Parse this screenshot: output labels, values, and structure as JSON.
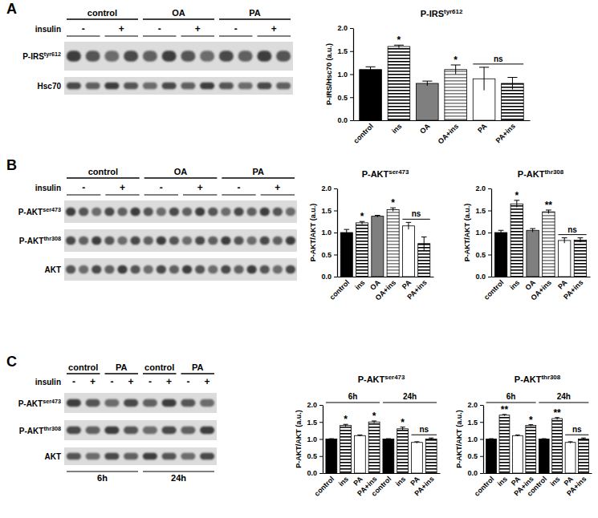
{
  "chart_data": [
    {
      "type": "bar",
      "title": "P-IRStyr612",
      "y_label": "P-IRS/Hsc70 (a.u.)",
      "categories": [
        "control",
        "ins",
        "OA",
        "OA+ins",
        "PA",
        "PA+ins"
      ],
      "values": [
        1.1,
        1.6,
        0.8,
        1.1,
        0.9,
        0.8
      ],
      "errors": [
        0.06,
        0.03,
        0.05,
        0.1,
        0.25,
        0.13
      ],
      "colors": [
        "#000000",
        "#000000",
        "#7f7f7f",
        "#7f7f7f",
        "#ffffff",
        "#000000"
      ],
      "ylim": [
        0,
        2
      ],
      "yticks": [
        {
          "value": 0,
          "label": "0.0"
        },
        0.5,
        {
          "value": 1,
          "label": "1.0"
        },
        1.5,
        {
          "value": 2,
          "label": "2.0"
        }
      ],
      "annotations": [
        {
          "text": "*",
          "index": 1
        },
        {
          "text": "*",
          "index": 3
        },
        {
          "text": "ns",
          "index": [
            4,
            5
          ]
        }
      ]
    },
    {
      "type": "bar",
      "title": "P-AKTser473",
      "y_label": "P-AKT/AKT (a.u.)",
      "categories": [
        "control",
        "ins",
        "OA",
        "OA+ins",
        "PA",
        "PA+ins"
      ],
      "values": [
        1.0,
        1.22,
        1.37,
        1.52,
        1.15,
        0.75
      ],
      "errors": [
        0.07,
        0.03,
        0.02,
        0.04,
        0.08,
        0.15
      ],
      "colors": [
        "#000000",
        "#000000",
        "#7f7f7f",
        "#7f7f7f",
        "#ffffff",
        "#000000"
      ],
      "ylim": [
        0,
        2
      ],
      "yticks": [
        {
          "value": 0,
          "label": "0.0"
        },
        0.5,
        {
          "value": 1,
          "label": "1.0"
        },
        1.5,
        {
          "value": 2,
          "label": "2.0"
        }
      ],
      "annotations": [
        {
          "text": "*",
          "index": 1
        },
        {
          "text": "*",
          "index": 3
        },
        {
          "text": "ns",
          "index": [
            4,
            5
          ]
        }
      ]
    },
    {
      "type": "bar",
      "title": "P-AKTthr308",
      "y_label": "P-AKT/AKT (a.u.)",
      "categories": [
        "control",
        "ins",
        "OA",
        "OA+ins",
        "PA",
        "PA+ins"
      ],
      "values": [
        1.0,
        1.65,
        1.05,
        1.47,
        0.82,
        0.83
      ],
      "errors": [
        0.05,
        0.08,
        0.04,
        0.04,
        0.06,
        0.05
      ],
      "colors": [
        "#000000",
        "#000000",
        "#7f7f7f",
        "#7f7f7f",
        "#ffffff",
        "#000000"
      ],
      "ylim": [
        0,
        2
      ],
      "yticks": [
        {
          "value": 0,
          "label": "0.0"
        },
        0.5,
        {
          "value": 1,
          "label": "1.0"
        },
        1.5,
        {
          "value": 2,
          "label": "2.0"
        }
      ],
      "annotations": [
        {
          "text": "*",
          "index": 1
        },
        {
          "text": "**",
          "index": 3
        },
        {
          "text": "ns",
          "index": [
            4,
            5
          ]
        }
      ]
    },
    {
      "type": "bar",
      "title": "P-AKTser473",
      "y_label": "P-AKT/AKT (a.u.)",
      "categories": [
        "control",
        "ins",
        "PA",
        "PA+ins",
        "control",
        "ins",
        "PA",
        "PA+ins"
      ],
      "values": [
        1.0,
        1.4,
        1.1,
        1.5,
        1.0,
        1.3,
        0.9,
        1.0
      ],
      "errors": [
        0.01,
        0.03,
        0.02,
        0.03,
        0.01,
        0.05,
        0.02,
        0.03
      ],
      "colors": [
        "#000000",
        "#000000",
        "#ffffff",
        "#000000",
        "#000000",
        "#000000",
        "#ffffff",
        "#000000"
      ],
      "ylim": [
        0,
        2
      ],
      "yticks": [
        {
          "value": 0,
          "label": "0.0"
        },
        0.5,
        {
          "value": 1,
          "label": "1.0"
        },
        1.5,
        {
          "value": 2,
          "label": "2.0"
        }
      ],
      "groups": [
        {
          "label": "6h",
          "from": 0,
          "to": 3
        },
        {
          "label": "24h",
          "from": 4,
          "to": 7
        }
      ],
      "annotations": [
        {
          "text": "*",
          "index": 1
        },
        {
          "text": "*",
          "index": 3
        },
        {
          "text": "*",
          "index": 5
        },
        {
          "text": "ns",
          "index": [
            6,
            7
          ]
        }
      ]
    },
    {
      "type": "bar",
      "title": "P-AKTthr308",
      "y_label": "P-AKT/AKT (a.u.)",
      "categories": [
        "control",
        "ins",
        "PA",
        "PA+ins",
        "control",
        "ins",
        "PA",
        "PA+ins"
      ],
      "values": [
        1.0,
        1.7,
        1.1,
        1.4,
        1.0,
        1.6,
        0.9,
        1.0
      ],
      "errors": [
        0.01,
        0.02,
        0.02,
        0.02,
        0.01,
        0.03,
        0.02,
        0.03
      ],
      "colors": [
        "#000000",
        "#000000",
        "#ffffff",
        "#000000",
        "#000000",
        "#000000",
        "#ffffff",
        "#000000"
      ],
      "ylim": [
        0,
        2
      ],
      "yticks": [
        {
          "value": 0,
          "label": "0.0"
        },
        0.5,
        {
          "value": 1,
          "label": "1.0"
        },
        1.5,
        {
          "value": 2,
          "label": "2.0"
        }
      ],
      "groups": [
        {
          "label": "6h",
          "from": 0,
          "to": 3
        },
        {
          "label": "24h",
          "from": 4,
          "to": 7
        }
      ],
      "annotations": [
        {
          "text": "**",
          "index": 1
        },
        {
          "text": "*",
          "index": 3
        },
        {
          "text": "**",
          "index": 5
        },
        {
          "text": "ns",
          "index": [
            6,
            7
          ]
        }
      ]
    }
  ],
  "blots": [
    {
      "panel": "A",
      "conditions": [
        "control",
        "OA",
        "PA"
      ],
      "insulin": "insulin",
      "signs": [
        "-",
        "+"
      ],
      "rows": [
        "P-IRStyr612",
        "Hsc70"
      ]
    },
    {
      "panel": "B",
      "conditions": [
        "control",
        "OA",
        "PA"
      ],
      "insulin": "insulin",
      "signs": [
        "-",
        "+"
      ],
      "rows": [
        "P-AKTser473",
        "P-AKTthr308",
        "AKT"
      ]
    },
    {
      "panel": "C",
      "conditions": [
        "control",
        "PA",
        "control",
        "PA"
      ],
      "insulin": "insulin",
      "signs": [
        "-",
        "+"
      ],
      "rows": [
        "P-AKTser473",
        "P-AKTthr308",
        "AKT"
      ],
      "times": [
        "6h",
        "24h"
      ]
    }
  ]
}
